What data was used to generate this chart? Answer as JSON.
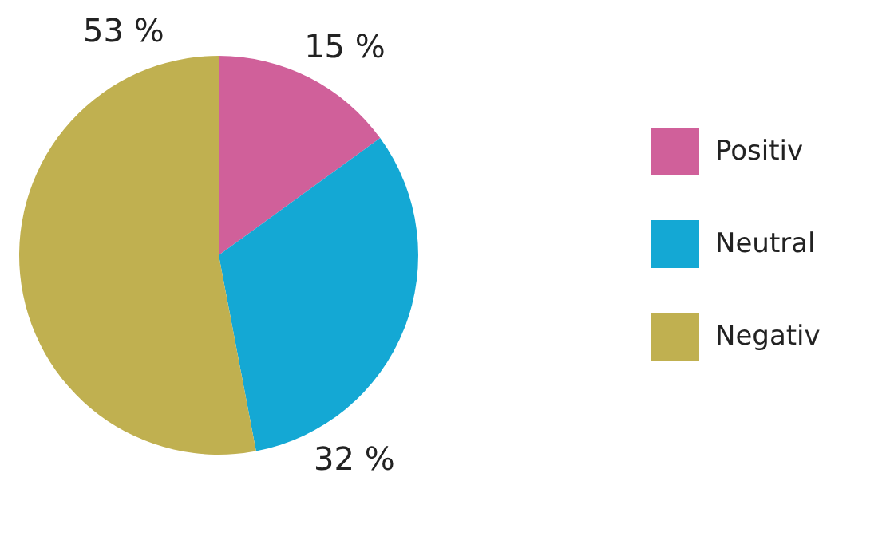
{
  "chart_data": {
    "type": "pie",
    "categories": [
      "Positiv",
      "Neutral",
      "Negativ"
    ],
    "values": [
      15,
      32,
      53
    ],
    "colors": [
      "#d0609a",
      "#14a8d4",
      "#c0b050"
    ],
    "value_labels": [
      "15 %",
      "32 %",
      "53 %"
    ],
    "legend": "right"
  }
}
